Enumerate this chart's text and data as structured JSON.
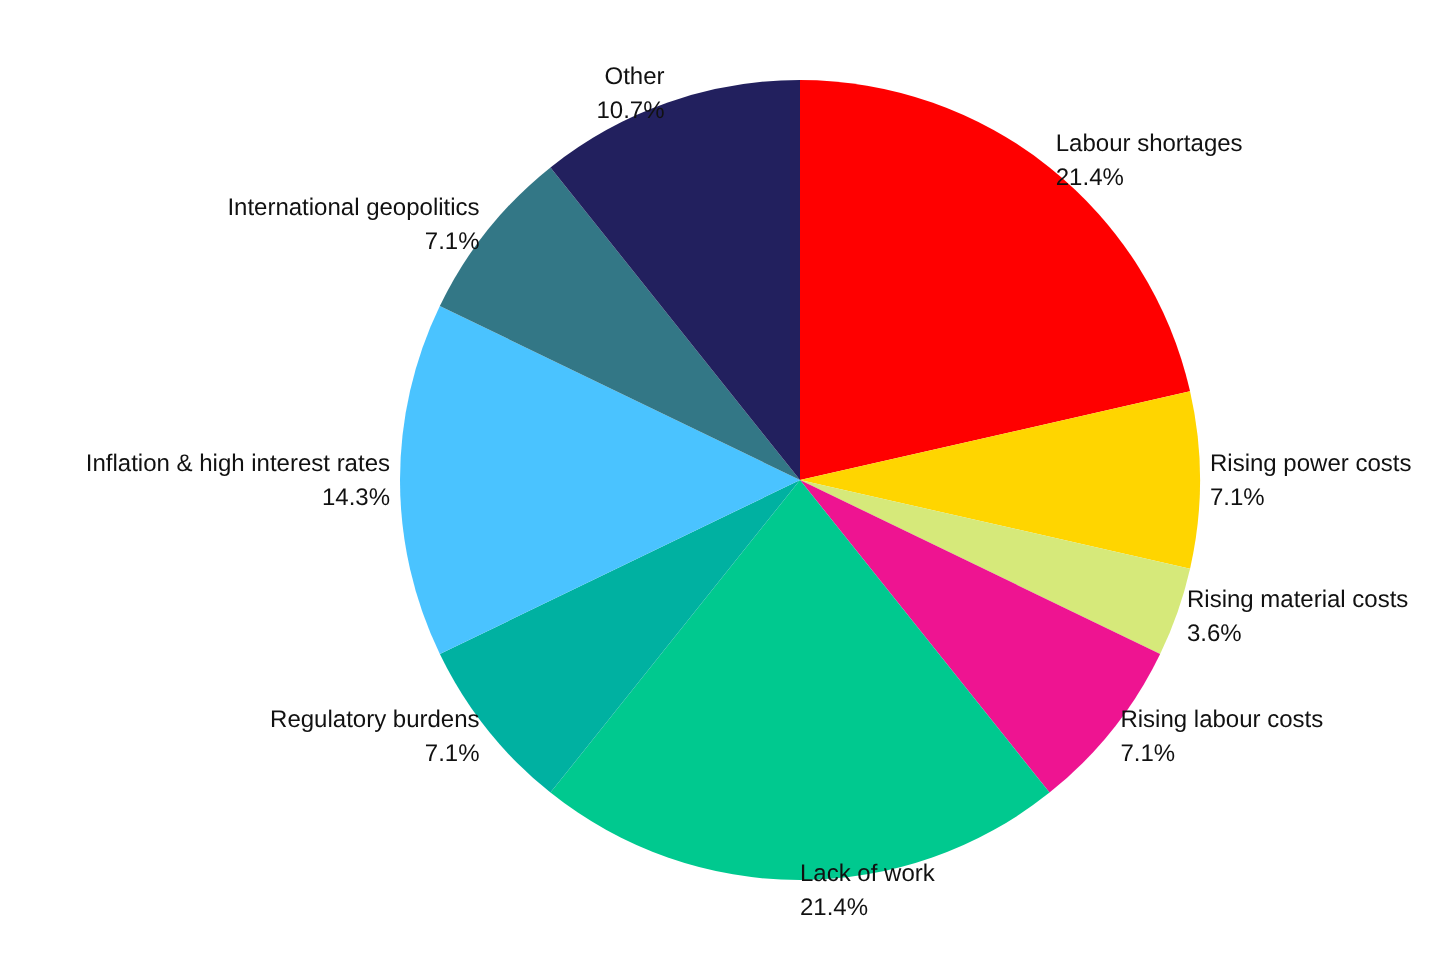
{
  "chart_data": {
    "type": "pie",
    "categories": [
      "Labour shortages",
      "Rising power costs",
      "Rising material costs",
      "Rising labour costs",
      "Lack of work",
      "Regulatory burdens",
      "Inflation & high interest rates",
      "International geopolitics",
      "Other"
    ],
    "values": [
      21.4,
      7.1,
      3.6,
      7.1,
      21.4,
      7.1,
      14.3,
      7.1,
      10.7
    ],
    "value_labels": [
      "21.4%",
      "7.1%",
      "3.6%",
      "7.1%",
      "21.4%",
      "7.1%",
      "14.3%",
      "7.1%",
      "10.7%"
    ],
    "colors": [
      "#ff0000",
      "#ffd500",
      "#d6e97a",
      "#ee1491",
      "#00c98f",
      "#00b1a1",
      "#4ac3ff",
      "#337786",
      "#22205e"
    ],
    "legend": false
  }
}
